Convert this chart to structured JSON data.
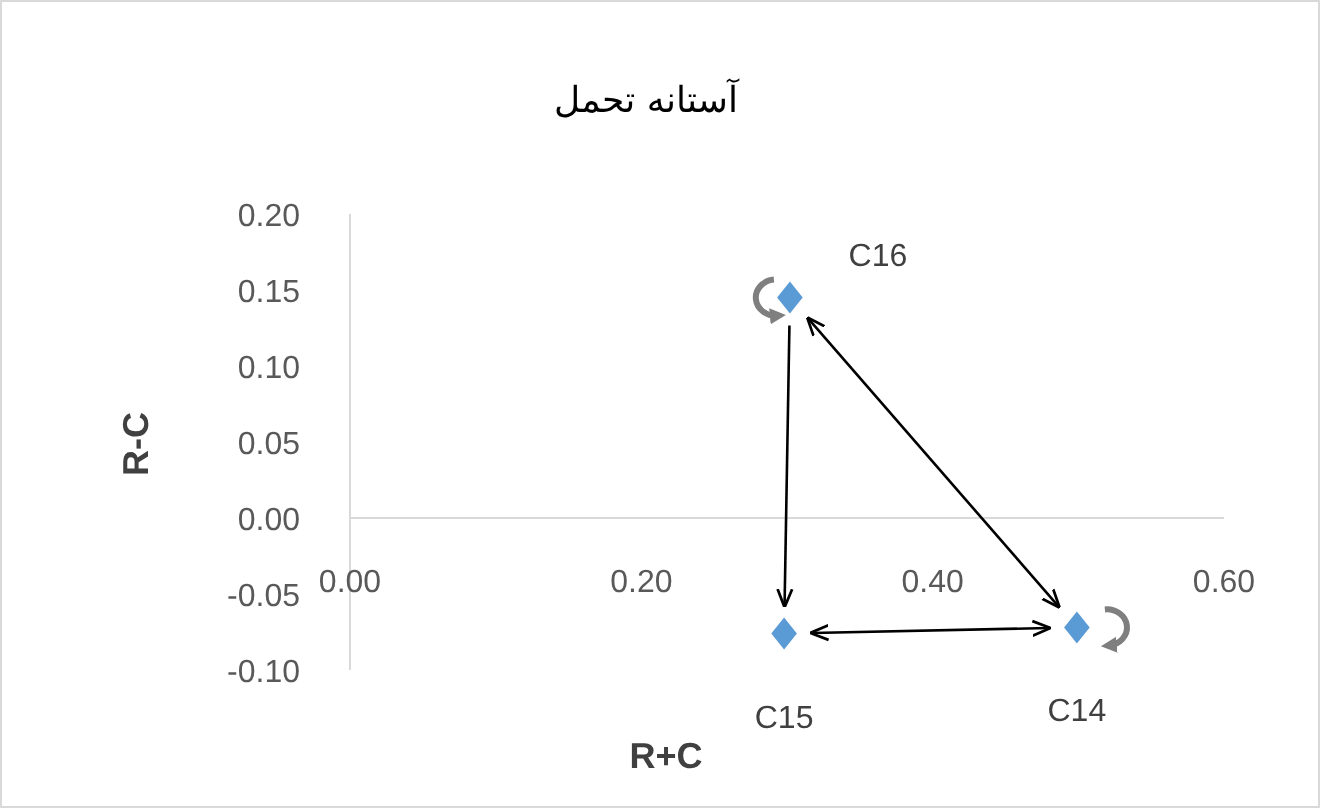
{
  "chart_data": {
    "type": "scatter",
    "title": "آستانه تحمل",
    "xlabel": "R+C",
    "ylabel": "R-C",
    "x": [
      0.499,
      0.298,
      0.302
    ],
    "series": [
      {
        "color": "#5b9bd5",
        "values": [
          -0.072,
          -0.076,
          0.145
        ]
      }
    ],
    "marker": "diamond",
    "xlim": [
      0,
      0.6
    ],
    "ylim": [
      -0.1,
      0.2
    ],
    "xticks": [
      {
        "value": 0,
        "label": "0.00"
      },
      {
        "value": 0.2,
        "label": "0.20"
      },
      {
        "value": 0.4,
        "label": "0.40"
      },
      {
        "value": 0.6,
        "label": "0.60"
      }
    ],
    "yticks": [
      {
        "value": -0.1,
        "label": "-0.10"
      },
      {
        "value": -0.05,
        "label": "-0.05"
      },
      {
        "value": 0,
        "label": "0.00"
      },
      {
        "value": 0.05,
        "label": "0.05"
      },
      {
        "value": 0.1,
        "label": "0.10"
      },
      {
        "value": 0.15,
        "label": "0.15"
      },
      {
        "value": 0.2,
        "label": "0.20"
      }
    ],
    "annotations": [
      {
        "text": "C14",
        "x": 0.499,
        "y": -0.072
      },
      {
        "text": "C15",
        "x": 0.298,
        "y": -0.076
      },
      {
        "text": "C16",
        "x": 0.302,
        "y": 0.145
      }
    ]
  }
}
